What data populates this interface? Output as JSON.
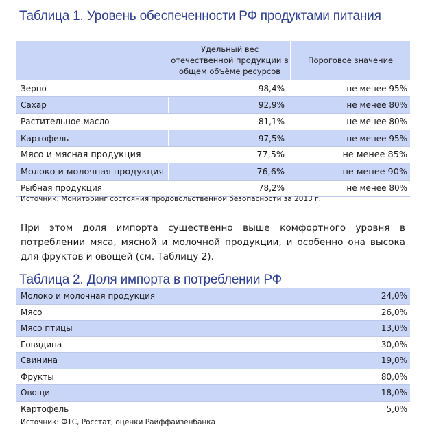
{
  "table1": {
    "title": "Таблица 1. Уровень обеспеченности РФ продуктами питания",
    "header": {
      "product": "",
      "share": "Удельный вес отечественной продукции в общем объёме ресурсов",
      "threshold": "Пороговое значение"
    },
    "rows": [
      {
        "product": "Зерно",
        "share": "98,4%",
        "threshold": "не менее 95%"
      },
      {
        "product": "Сахар",
        "share": "92,9%",
        "threshold": "не менее 80%"
      },
      {
        "product": "Растительное масло",
        "share": "81,1%",
        "threshold": "не менее 80%"
      },
      {
        "product": "Картофель",
        "share": "97,5%",
        "threshold": "не менее 95%"
      },
      {
        "product": "Мясо и мясная продукция",
        "share": "77,5%",
        "threshold": "не менее 85%"
      },
      {
        "product": "Молоко и молочная продукция",
        "share": "76,6%",
        "threshold": "не менее 90%"
      },
      {
        "product": "Рыбная продукция",
        "share": "78,2%",
        "threshold": "не менее 80%"
      }
    ],
    "source": "Источник: Мониторинг состояния продовольственной безопасности за 2013 г."
  },
  "paragraph": "При этом доля импорта существенно выше комфортного уровня в потреблении мяса, мясной и молочной продукции, и особенно она высока для фруктов и овощей (см. Таблицу 2).",
  "table2": {
    "title": "Таблица 2. Доля импорта в потреблении РФ",
    "rows": [
      {
        "product": "Молоко и молочная продукция",
        "share": "24,0%"
      },
      {
        "product": "Мясо",
        "share": "26,0%"
      },
      {
        "product": "Мясо птицы",
        "share": "13,0%"
      },
      {
        "product": "Говядина",
        "share": "30,0%"
      },
      {
        "product": "Свинина",
        "share": "19,0%"
      },
      {
        "product": "Фрукты",
        "share": "80,0%"
      },
      {
        "product": "Овощи",
        "share": "18,0%"
      },
      {
        "product": "Картофель",
        "share": "5,0%"
      }
    ],
    "source": "Источник: ФТС, Росстат, оценки Райффайзенбанка"
  }
}
